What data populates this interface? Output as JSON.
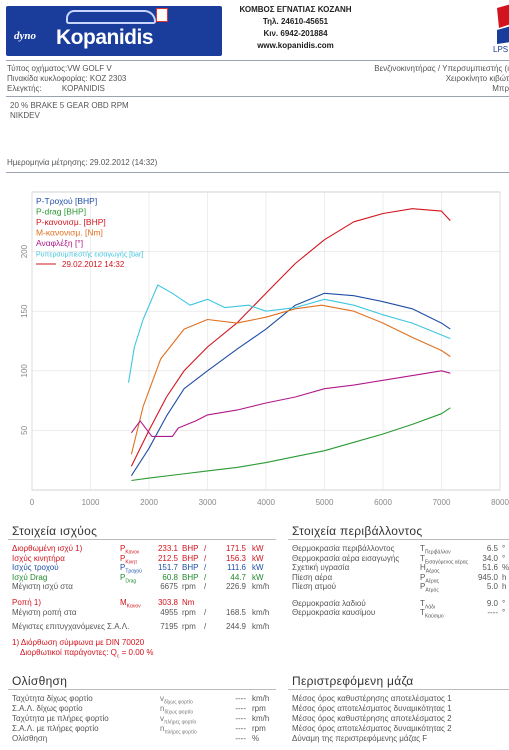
{
  "header": {
    "logo_prefix": "dyno",
    "logo_brand": "Kopanidis",
    "company_line": "ΚΟΜΒΟΣ ΕΓΝΑΤΙΑΣ ΚΟΖΑΝΗ",
    "phone": "Τηλ. 24610-45651",
    "mobile": "Κιν. 6942-201884",
    "website": "www.kopanidis.com",
    "corner_mark": "LPS"
  },
  "vehicle": {
    "type_label": "Τύπος οχήματος:",
    "type_value": "VW GOLF V",
    "plate_label": "Πινακίδα κυκλοφορίας:",
    "plate_value": "KOZ 2303",
    "inspector_label": "Ελεγκτής:",
    "inspector_value": "KOPANIDIS",
    "engine": "Βενζινοκινητήρας / Υπερσυμπιεστής (ι",
    "gearbox": "Χειροκίνητο κιβώτ",
    "extra": "Μπρ",
    "notes_line1": "20 % BRAKE   5 GEAR OBD RPM",
    "notes_line2": "NIKDEV",
    "date_label": "Ημερομηνία μέτρησης:",
    "date_value": "29.02.2012 (14:32)"
  },
  "chart_data": {
    "type": "line",
    "xlim": [
      0,
      8000
    ],
    "ylim": [
      0,
      250
    ],
    "x_ticks": [
      0,
      1000,
      2000,
      3000,
      4000,
      5000,
      6000,
      7000,
      8000
    ],
    "y_ticks": [
      50,
      100,
      150,
      200
    ],
    "grid": true,
    "legend_position": "top-left",
    "legend_date": "29.02.2012 14:32",
    "series": [
      {
        "name": "P-Τροχού [BHP]",
        "color": "#1f4ea6",
        "points": [
          [
            1700,
            12
          ],
          [
            2000,
            35
          ],
          [
            2300,
            62
          ],
          [
            2600,
            85
          ],
          [
            3000,
            100
          ],
          [
            3500,
            118
          ],
          [
            4000,
            135
          ],
          [
            4500,
            155
          ],
          [
            5000,
            165
          ],
          [
            5500,
            163
          ],
          [
            6000,
            158
          ],
          [
            6500,
            152
          ],
          [
            7000,
            140
          ],
          [
            7150,
            135
          ]
        ]
      },
      {
        "name": "P-drag [BHP]",
        "color": "#2a9a34",
        "points": [
          [
            1700,
            8
          ],
          [
            2000,
            10
          ],
          [
            2500,
            13
          ],
          [
            3000,
            16
          ],
          [
            3500,
            19
          ],
          [
            4000,
            23
          ],
          [
            4500,
            28
          ],
          [
            5000,
            33
          ],
          [
            5500,
            40
          ],
          [
            6000,
            47
          ],
          [
            6500,
            55
          ],
          [
            7000,
            64
          ],
          [
            7150,
            69
          ]
        ]
      },
      {
        "name": "P-κανονισμ. [BHP]",
        "color": "#d2141e",
        "points": [
          [
            1700,
            20
          ],
          [
            2000,
            50
          ],
          [
            2300,
            78
          ],
          [
            2600,
            100
          ],
          [
            3000,
            120
          ],
          [
            3500,
            140
          ],
          [
            4000,
            165
          ],
          [
            4500,
            190
          ],
          [
            5000,
            210
          ],
          [
            5500,
            225
          ],
          [
            6000,
            232
          ],
          [
            6500,
            236
          ],
          [
            7000,
            234
          ],
          [
            7150,
            226
          ]
        ]
      },
      {
        "name": "M-κανονισμ. [Nm]",
        "color": "#e07020",
        "points": [
          [
            1700,
            30
          ],
          [
            1900,
            70
          ],
          [
            2200,
            110
          ],
          [
            2600,
            135
          ],
          [
            3000,
            143
          ],
          [
            3500,
            140
          ],
          [
            4000,
            145
          ],
          [
            4500,
            152
          ],
          [
            4950,
            155
          ],
          [
            5500,
            150
          ],
          [
            6000,
            140
          ],
          [
            6500,
            128
          ],
          [
            7000,
            117
          ],
          [
            7150,
            112
          ]
        ]
      },
      {
        "name": "Αναφλέξη [°]",
        "color": "#b0198a",
        "points": [
          [
            1700,
            48
          ],
          [
            1850,
            58
          ],
          [
            2050,
            45
          ],
          [
            2400,
            45
          ],
          [
            2500,
            52
          ],
          [
            2800,
            58
          ],
          [
            3000,
            63
          ],
          [
            3500,
            67
          ],
          [
            4000,
            73
          ],
          [
            4500,
            78
          ],
          [
            5000,
            85
          ],
          [
            5500,
            88
          ],
          [
            6000,
            92
          ],
          [
            6500,
            96
          ],
          [
            7000,
            100
          ],
          [
            7150,
            98
          ]
        ]
      },
      {
        "name": "Pυπερσυμπιεστής εισαγωγής [bar]",
        "color": "#40c6e0",
        "points": [
          [
            1650,
            90
          ],
          [
            1750,
            120
          ],
          [
            1900,
            143
          ],
          [
            2150,
            172
          ],
          [
            2400,
            165
          ],
          [
            2700,
            155
          ],
          [
            3000,
            160
          ],
          [
            3300,
            153
          ],
          [
            3700,
            155
          ],
          [
            4000,
            150
          ],
          [
            4500,
            153
          ],
          [
            5000,
            160
          ],
          [
            5500,
            155
          ],
          [
            6000,
            147
          ],
          [
            6500,
            140
          ],
          [
            7000,
            130
          ],
          [
            7150,
            127
          ]
        ]
      }
    ]
  },
  "power_section": {
    "title": "Στοιχεία ισχύος",
    "rows": [
      {
        "label": "Διορθωμένη ισχύ",
        "mark": "1)",
        "sym": "P",
        "sub": "Κανον",
        "v1": "233.1",
        "u1": "BHP",
        "v2": "171.5",
        "u2": "kW",
        "color": "#d2141e"
      },
      {
        "label": "Ισχύς κινητήρα",
        "mark": "",
        "sym": "P",
        "sub": "Κινητ",
        "v1": "212.5",
        "u1": "BHP",
        "v2": "156.3",
        "u2": "kW",
        "color": "#d2141e"
      },
      {
        "label": "Ισχύς τροχού",
        "mark": "",
        "sym": "P",
        "sub": "Τροχού",
        "v1": "151.7",
        "u1": "BHP",
        "v2": "111.6",
        "u2": "kW",
        "color": "#1f4ea6"
      },
      {
        "label": "Ισχύ Drag",
        "mark": "",
        "sym": "P",
        "sub": "Drag",
        "v1": "60.8",
        "u1": "BHP",
        "v2": "44.7",
        "u2": "kW",
        "color": "#1f8a2a"
      },
      {
        "label": "Μέγιστη ισχύ στα",
        "mark": "",
        "sym": "",
        "sub": "",
        "v1": "6675",
        "u1": "rpm",
        "v2": "226.9",
        "u2": "km/h",
        "color": "#555555"
      }
    ],
    "torque": {
      "label": "Ροπή",
      "mark": "1)",
      "sym": "M",
      "sub": "Κανον",
      "v1": "303.8",
      "u1": "Nm"
    },
    "torque_at": {
      "label": "Μέγιστη ροπή στα",
      "v1": "4955",
      "u1": "rpm",
      "v2": "168.5",
      "u2": "km/h"
    },
    "max_speed": {
      "label": "Μέγιστες επιτυγχανόμενες Σ.Α.Λ.",
      "v1": "7195",
      "u1": "rpm",
      "v2": "244.9",
      "u2": "km/h"
    },
    "footnote1": "1) Διόρθωση σύμφωνα με DIN 70020",
    "footnote2": "Διορθωτικοί παράγοντες: Q",
    "footnote2_sub": "c",
    "footnote2_val": "= 0.00 %"
  },
  "env_section": {
    "title": "Στοιχεία περιβάλλοντος",
    "rows": [
      {
        "label": "Θερμοκρασία περιβάλλοντος",
        "sym": "T",
        "sub": "Περιβάλλον",
        "val": "6.5",
        "unit": "°"
      },
      {
        "label": "Θερμοκρασία αέρα εισαγωγής",
        "sym": "T",
        "sub": "Εισαγόμενος αέρας",
        "val": "34.0",
        "unit": "°"
      },
      {
        "label": "Σχετική υγρασία",
        "sym": "H",
        "sub": "Αέρας",
        "val": "51.6",
        "unit": "%"
      },
      {
        "label": "Πίεση αέρα",
        "sym": "P",
        "sub": "Αέρας",
        "val": "945.0",
        "unit": "h"
      },
      {
        "label": "Πίεση ατμού",
        "sym": "P",
        "sub": "Ατμός",
        "val": "5.0",
        "unit": "h"
      },
      {
        "label": "Θερμοκρασία λαδιού",
        "sym": "T",
        "sub": "Λάδι",
        "val": "9.0",
        "unit": "°"
      },
      {
        "label": "Θερμοκρασία καυσίμου",
        "sym": "T",
        "sub": "Καύσιμο",
        "val": "----",
        "unit": "°"
      }
    ]
  },
  "slip_section": {
    "title": "Ολίσθηση",
    "rows": [
      {
        "label": "Ταχύτητα δίχως φορτίο",
        "sym": "v",
        "sub": "δίχως φορτίο",
        "val": "----",
        "unit": "km/h"
      },
      {
        "label": "Σ.Α.Λ. δίχως φορτίο",
        "sym": "n",
        "sub": "δίχως φορτίο",
        "val": "----",
        "unit": "rpm"
      },
      {
        "label": "Ταχύτητα με πλήρες φορτίο",
        "sym": "v",
        "sub": "πλήρες φορτίο",
        "val": "----",
        "unit": "km/h"
      },
      {
        "label": "Σ.Α.Λ. με πλήρες φορτίο",
        "sym": "n",
        "sub": "πλήρες φορτίο",
        "val": "----",
        "unit": "rpm"
      },
      {
        "label": "Ολίσθηση",
        "sym": "",
        "sub": "",
        "val": "----",
        "unit": "%"
      }
    ]
  },
  "mass_section": {
    "title": "Περιστρεφόμενη μάζα",
    "rows": [
      {
        "label": "Μέσος όρος καθυστέρησης αποτελέσματος 1"
      },
      {
        "label": "Μέσος όρος αποτελέσματος δυναμικότητας 1"
      },
      {
        "label": "Μέσος όρος καθυστέρησης αποτελέσματος 2"
      },
      {
        "label": "Μέσος όρος αποτελέσματος δυναμικότητας 2"
      },
      {
        "label": "Δύναμη της περιστρεφόμενης μάζας F"
      }
    ]
  }
}
